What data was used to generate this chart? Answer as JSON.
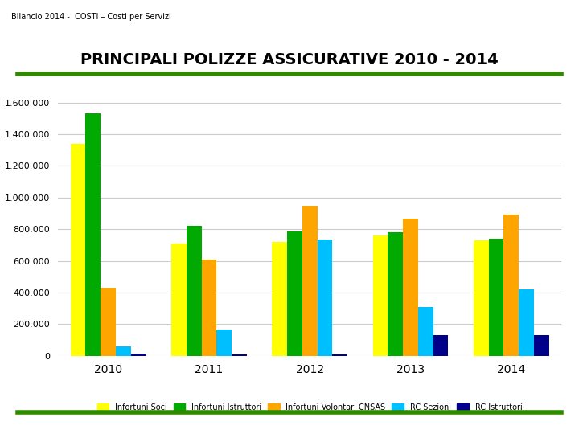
{
  "title": "PRINCIPALI POLIZZE ASSICURATIVE 2010 - 2014",
  "header": "Bilancio 2014 -  COSTI – Costi per Servizi",
  "years": [
    2010,
    2011,
    2012,
    2013,
    2014
  ],
  "series": {
    "Infortuni Soci": [
      1340000,
      710000,
      720000,
      760000,
      730000
    ],
    "Infortuni Istruttori": [
      1530000,
      820000,
      785000,
      780000,
      738000
    ],
    "Infortuni Volontari CNSAS": [
      430000,
      610000,
      950000,
      865000,
      895000
    ],
    "RC Sezioni": [
      60000,
      165000,
      735000,
      310000,
      420000
    ],
    "RC Istruttori": [
      15000,
      10000,
      10000,
      130000,
      130000
    ]
  },
  "colors": {
    "Infortuni Soci": "#FFFF00",
    "Infortuni Istruttori": "#00AA00",
    "Infortuni Volontari CNSAS": "#FFA500",
    "RC Sezioni": "#00BFFF",
    "RC Istruttori": "#00008B"
  },
  "ylim": [
    0,
    1700000
  ],
  "yticks": [
    0,
    200000,
    400000,
    600000,
    800000,
    1000000,
    1200000,
    1400000,
    1600000
  ],
  "background_color": "#FFFFFF",
  "grid_color": "#CCCCCC",
  "bar_width": 0.15,
  "title_fontsize": 14,
  "top_line_color": "#2E8B00",
  "bottom_line_color": "#2E8B00"
}
